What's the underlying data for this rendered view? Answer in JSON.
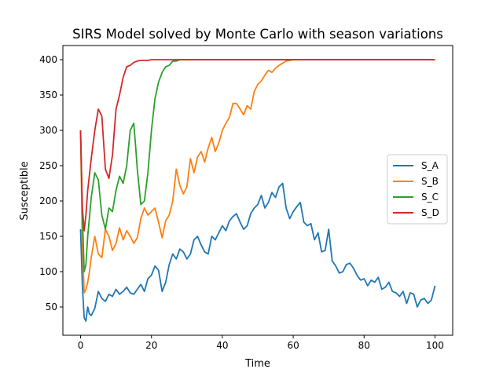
{
  "chart_data": {
    "type": "line",
    "title": "SIRS Model solved by Monte Carlo with season variations",
    "xlabel": "Time",
    "ylabel": "Susceptible",
    "xlim": [
      -5,
      105
    ],
    "ylim": [
      10,
      420
    ],
    "xticks": [
      0,
      20,
      40,
      60,
      80,
      100
    ],
    "yticks": [
      50,
      100,
      150,
      200,
      250,
      300,
      350,
      400
    ],
    "grid": false,
    "legend_position": "center-right",
    "series": [
      {
        "name": "S_A",
        "color": "#1f77b4",
        "x": [
          0,
          0.5,
          1,
          1.5,
          2,
          2.5,
          3,
          4,
          5,
          6,
          7,
          8,
          9,
          10,
          11,
          12,
          13,
          14,
          15,
          16,
          17,
          18,
          19,
          20,
          21,
          22,
          23,
          24,
          25,
          26,
          27,
          28,
          29,
          30,
          31,
          32,
          33,
          34,
          35,
          36,
          37,
          38,
          39,
          40,
          41,
          42,
          43,
          44,
          45,
          46,
          47,
          48,
          49,
          50,
          51,
          52,
          53,
          54,
          55,
          56,
          57,
          58,
          59,
          60,
          61,
          62,
          63,
          64,
          65,
          66,
          67,
          68,
          69,
          70,
          71,
          72,
          73,
          74,
          75,
          76,
          77,
          78,
          79,
          80,
          81,
          82,
          83,
          84,
          85,
          86,
          87,
          88,
          89,
          90,
          91,
          92,
          93,
          94,
          95,
          96,
          97,
          98,
          99,
          100
        ],
        "values": [
          160,
          80,
          35,
          30,
          50,
          40,
          38,
          48,
          72,
          62,
          58,
          68,
          65,
          75,
          68,
          72,
          78,
          70,
          68,
          75,
          82,
          72,
          90,
          95,
          108,
          102,
          72,
          85,
          110,
          125,
          118,
          132,
          128,
          118,
          125,
          145,
          150,
          138,
          128,
          125,
          150,
          145,
          155,
          165,
          158,
          172,
          178,
          182,
          170,
          160,
          165,
          182,
          190,
          195,
          208,
          190,
          198,
          212,
          205,
          220,
          225,
          190,
          175,
          185,
          192,
          198,
          170,
          165,
          168,
          145,
          155,
          128,
          130,
          160,
          115,
          108,
          98,
          100,
          110,
          112,
          105,
          95,
          88,
          90,
          80,
          88,
          85,
          92,
          75,
          78,
          85,
          72,
          70,
          65,
          72,
          55,
          70,
          68,
          50,
          60,
          62,
          55,
          60,
          80
        ]
      },
      {
        "name": "S_B",
        "color": "#ff7f0e",
        "x": [
          0,
          0.5,
          1,
          1.5,
          2,
          2.5,
          3,
          4,
          5,
          6,
          7,
          8,
          9,
          10,
          11,
          12,
          13,
          14,
          15,
          16,
          17,
          18,
          19,
          20,
          21,
          22,
          23,
          24,
          25,
          26,
          27,
          28,
          29,
          30,
          31,
          32,
          33,
          34,
          35,
          36,
          37,
          38,
          39,
          40,
          41,
          42,
          43,
          44,
          45,
          46,
          47,
          48,
          49,
          50,
          51,
          52,
          53,
          54,
          55,
          56,
          57,
          58,
          59,
          60,
          100
        ],
        "values": [
          300,
          140,
          70,
          75,
          85,
          100,
          120,
          150,
          125,
          120,
          160,
          150,
          130,
          140,
          162,
          145,
          158,
          150,
          140,
          148,
          175,
          190,
          180,
          185,
          190,
          170,
          148,
          172,
          180,
          200,
          245,
          222,
          210,
          220,
          260,
          240,
          262,
          270,
          255,
          275,
          290,
          270,
          282,
          300,
          310,
          318,
          338,
          338,
          330,
          322,
          335,
          330,
          355,
          365,
          370,
          378,
          385,
          382,
          388,
          392,
          395,
          398,
          399,
          400,
          400
        ]
      },
      {
        "name": "S_C",
        "color": "#2ca02c",
        "x": [
          0,
          0.5,
          1,
          1.5,
          2,
          3,
          4,
          5,
          6,
          7,
          8,
          9,
          10,
          11,
          12,
          13,
          14,
          15,
          15.5,
          16,
          17,
          18,
          19,
          20,
          21,
          22,
          23,
          24,
          25,
          26,
          27,
          28,
          29,
          30,
          100
        ],
        "values": [
          300,
          180,
          100,
          110,
          150,
          205,
          240,
          230,
          180,
          160,
          190,
          185,
          215,
          235,
          225,
          250,
          300,
          310,
          280,
          245,
          195,
          200,
          240,
          300,
          345,
          368,
          382,
          390,
          392,
          398,
          398,
          400,
          400,
          400,
          400
        ]
      },
      {
        "name": "S_D",
        "color": "#d62728",
        "x": [
          0,
          0.5,
          1,
          1.5,
          2,
          3,
          4,
          5,
          6,
          7,
          8,
          9,
          10,
          11,
          12,
          13,
          14,
          15,
          16,
          17,
          18,
          19,
          20,
          100
        ],
        "values": [
          300,
          190,
          158,
          180,
          215,
          260,
          300,
          330,
          320,
          245,
          232,
          265,
          330,
          350,
          375,
          390,
          392,
          396,
          398,
          399,
          399,
          399,
          400,
          400
        ]
      }
    ]
  }
}
